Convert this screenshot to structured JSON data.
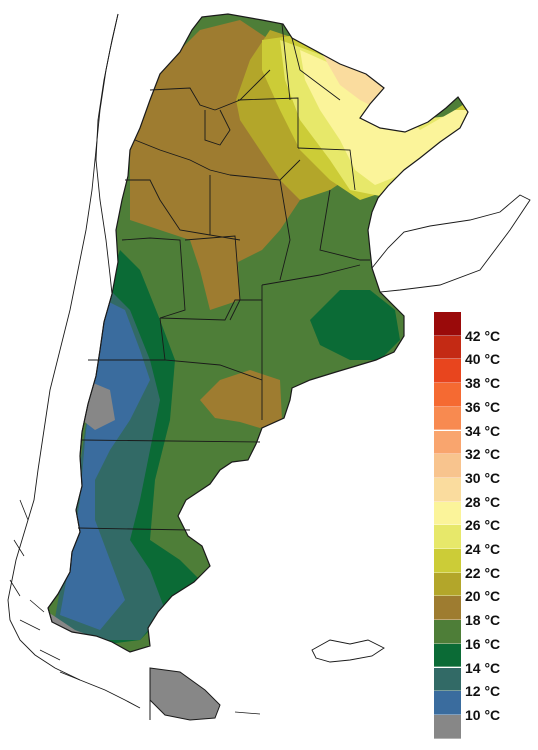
{
  "legend": {
    "unit_suffix": " °C",
    "bands": [
      {
        "color": "#9a0a0a",
        "label": "42"
      },
      {
        "color": "#c42a14",
        "label": "40"
      },
      {
        "color": "#e8451e",
        "label": "38"
      },
      {
        "color": "#f56a32",
        "label": "36"
      },
      {
        "color": "#f88a50",
        "label": "34"
      },
      {
        "color": "#f9a56e",
        "label": "32"
      },
      {
        "color": "#f8c48e",
        "label": "30"
      },
      {
        "color": "#fadc9e",
        "label": "28"
      },
      {
        "color": "#fbf49a",
        "label": "26"
      },
      {
        "color": "#e7e86a",
        "label": "24"
      },
      {
        "color": "#cccc37",
        "label": "22"
      },
      {
        "color": "#b3a62a",
        "label": "20"
      },
      {
        "color": "#9e7c30",
        "label": "18"
      },
      {
        "color": "#4e7e38",
        "label": "16"
      },
      {
        "color": "#0b6b36",
        "label": "14"
      },
      {
        "color": "#326a66",
        "label": "12"
      },
      {
        "color": "#3a6c9e",
        "label": "10"
      },
      {
        "color": "#878787",
        "label": ""
      }
    ]
  },
  "colors": {
    "outline": "#1a1a1a",
    "sea": "#ffffff"
  }
}
